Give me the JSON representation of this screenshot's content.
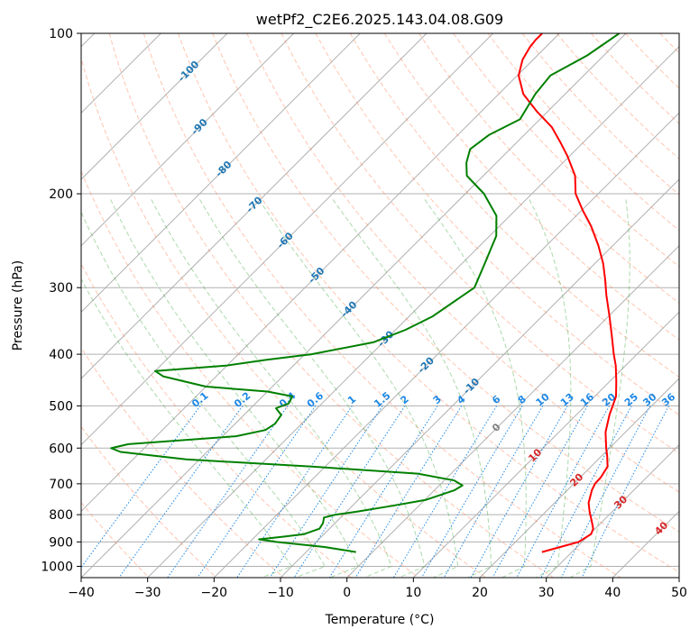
{
  "chart_data": {
    "type": "skew-t",
    "title": "wetPf2_C2E6.2025.143.04.08.G09",
    "xlabel": "Temperature (°C)",
    "ylabel": "Pressure (hPa)",
    "xlim": [
      -40,
      50
    ],
    "ylim": [
      1050,
      100
    ],
    "x_ticks": [
      -40,
      -30,
      -20,
      -10,
      0,
      10,
      20,
      30,
      40,
      50
    ],
    "y_ticks": [
      100,
      200,
      300,
      400,
      500,
      600,
      700,
      800,
      900,
      1000
    ],
    "grid": true,
    "series": [
      {
        "role": "temperature",
        "color": "#ff0000",
        "points": [
          [
            940,
            25.5
          ],
          [
            920,
            27.5
          ],
          [
            900,
            29.5
          ],
          [
            870,
            30.2
          ],
          [
            850,
            29.7
          ],
          [
            820,
            28.2
          ],
          [
            790,
            26.6
          ],
          [
            760,
            25.1
          ],
          [
            720,
            23.7
          ],
          [
            700,
            23.2
          ],
          [
            680,
            23.1
          ],
          [
            650,
            22.5
          ],
          [
            620,
            20.8
          ],
          [
            600,
            19.5
          ],
          [
            560,
            17.0
          ],
          [
            520,
            15.0
          ],
          [
            480,
            13.2
          ],
          [
            450,
            11.0
          ],
          [
            420,
            8.5
          ],
          [
            400,
            6.5
          ],
          [
            370,
            3.5
          ],
          [
            340,
            0.2
          ],
          [
            310,
            -3.5
          ],
          [
            290,
            -6.0
          ],
          [
            270,
            -8.8
          ],
          [
            250,
            -12.2
          ],
          [
            230,
            -16.2
          ],
          [
            215,
            -19.8
          ],
          [
            200,
            -23.4
          ],
          [
            185,
            -26.2
          ],
          [
            170,
            -30.3
          ],
          [
            160,
            -33.5
          ],
          [
            150,
            -37.0
          ],
          [
            140,
            -41.7
          ],
          [
            130,
            -46.3
          ],
          [
            120,
            -49.8
          ],
          [
            112,
            -51.6
          ],
          [
            106,
            -52.4
          ],
          [
            103,
            -52.6
          ],
          [
            100,
            -52.6
          ]
        ]
      },
      {
        "role": "dewpoint",
        "color": "#008000",
        "points": [
          [
            940,
            -2.5
          ],
          [
            920,
            -8.0
          ],
          [
            900,
            -16.0
          ],
          [
            890,
            -19.0
          ],
          [
            880,
            -15.8
          ],
          [
            870,
            -13.0
          ],
          [
            850,
            -11.5
          ],
          [
            830,
            -11.8
          ],
          [
            810,
            -12.5
          ],
          [
            800,
            -11.2
          ],
          [
            790,
            -8.5
          ],
          [
            770,
            -4.0
          ],
          [
            750,
            0.2
          ],
          [
            720,
            3.0
          ],
          [
            705,
            3.5
          ],
          [
            690,
            1.5
          ],
          [
            670,
            -5.0
          ],
          [
            650,
            -22.0
          ],
          [
            630,
            -42.0
          ],
          [
            610,
            -53.0
          ],
          [
            600,
            -55.0
          ],
          [
            590,
            -53.0
          ],
          [
            570,
            -38.0
          ],
          [
            555,
            -34.5
          ],
          [
            540,
            -34.0
          ],
          [
            520,
            -34.4
          ],
          [
            505,
            -36.2
          ],
          [
            495,
            -35.0
          ],
          [
            480,
            -35.5
          ],
          [
            470,
            -40.0
          ],
          [
            460,
            -50.0
          ],
          [
            440,
            -58.0
          ],
          [
            430,
            -60.0
          ],
          [
            420,
            -50.0
          ],
          [
            410,
            -45.0
          ],
          [
            400,
            -39.0
          ],
          [
            380,
            -31.5
          ],
          [
            360,
            -28.5
          ],
          [
            340,
            -26.5
          ],
          [
            300,
            -24.5
          ],
          [
            270,
            -26.6
          ],
          [
            240,
            -29.0
          ],
          [
            220,
            -32.0
          ],
          [
            200,
            -37.2
          ],
          [
            185,
            -42.5
          ],
          [
            175,
            -44.5
          ],
          [
            165,
            -46.0
          ],
          [
            155,
            -45.3
          ],
          [
            145,
            -43.0
          ],
          [
            130,
            -44.5
          ],
          [
            120,
            -45.0
          ],
          [
            110,
            -42.5
          ],
          [
            100,
            -41.0
          ]
        ]
      }
    ],
    "reference_lines": {
      "isotherms_C": [
        -100,
        -90,
        -80,
        -70,
        -60,
        -50,
        -40,
        -30,
        -20,
        -10,
        0,
        10,
        20,
        30,
        40,
        50
      ],
      "isotherm_labels": [
        "-100",
        "-90",
        "-80",
        "-70",
        "-60",
        "-50",
        "-40",
        "-30",
        "-20",
        "-10"
      ],
      "dry_adiabats_K": [
        230,
        240,
        250,
        260,
        270,
        280,
        290,
        300,
        310,
        320,
        330,
        340,
        350,
        360,
        370,
        380,
        390,
        400,
        410,
        420,
        430,
        440,
        450,
        460,
        470,
        480
      ],
      "moist_adiabats_C": [
        -10,
        -5,
        0,
        5,
        10,
        15,
        20,
        25,
        30,
        35
      ],
      "mixing_ratios_gkg": [
        0.1,
        0.2,
        0.4,
        0.6,
        1,
        1.5,
        2,
        3,
        4,
        6,
        8,
        10,
        13,
        16,
        20,
        25,
        30,
        36
      ],
      "mixing_ratio_labels": [
        "0.1",
        "0.2",
        "0.4",
        "0.6",
        "1",
        "1.5",
        "2",
        "3",
        "4",
        "6",
        "8",
        "10",
        "13",
        "16",
        "20",
        "25",
        "30",
        "36"
      ],
      "extra_isotherm_labels": [
        {
          "text": "0",
          "color": "#808080"
        },
        {
          "text": "10",
          "color": "#d62728"
        },
        {
          "text": "20",
          "color": "#d62728"
        },
        {
          "text": "30",
          "color": "#d62728"
        },
        {
          "text": "40",
          "color": "#d62728"
        }
      ]
    },
    "colors": {
      "grid": "#b0b0b0",
      "isotherm_label": "#1f77b4",
      "mixing_ratio": "#1e88e5",
      "dry_adiabat": "#ff7f50",
      "moist_adiabat": "#2ca02c",
      "frame": "#000000"
    }
  }
}
